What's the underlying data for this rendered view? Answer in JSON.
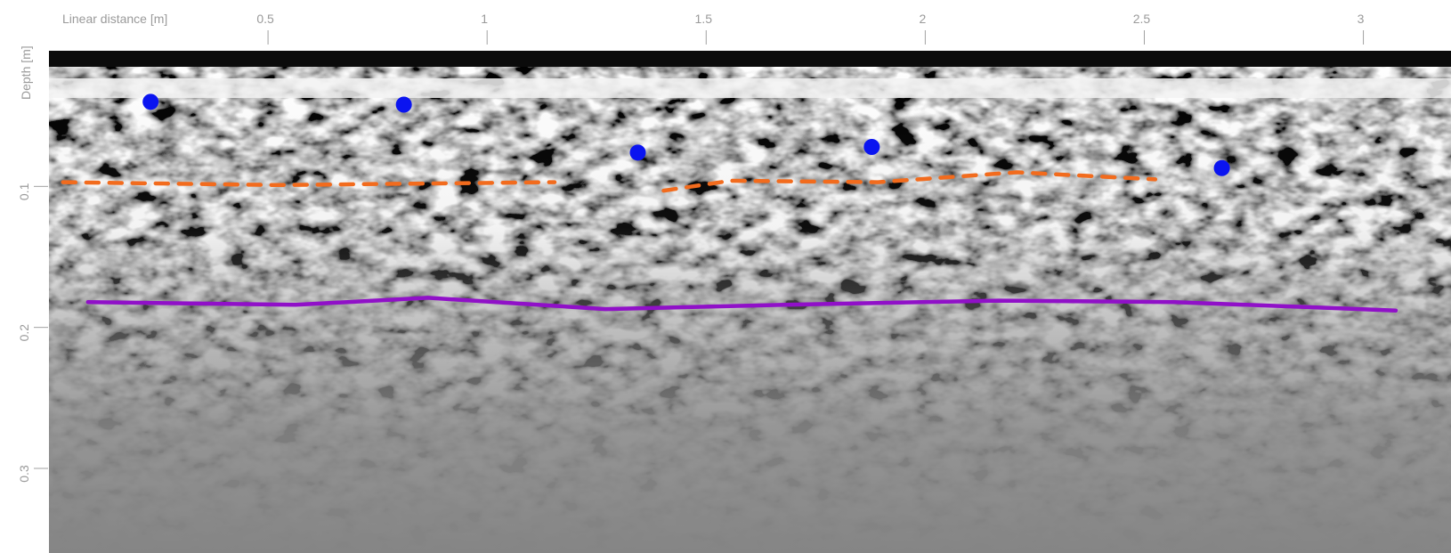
{
  "chart_data": {
    "type": "line",
    "xlabel": "Linear distance [m]",
    "ylabel": "Depth [m]",
    "xlim": [
      0,
      3.2
    ],
    "xticks": [
      0.5,
      1,
      1.5,
      2,
      2.5,
      3
    ],
    "ylim": [
      0,
      0.36
    ],
    "yticks": [
      0.1,
      0.2,
      0.3
    ],
    "y_inverted": true,
    "series": [
      {
        "color": "#0a14f0",
        "mode": "markers",
        "x": [
          0.232,
          0.81,
          1.344,
          1.878,
          2.677
        ],
        "values": [
          0.04,
          0.042,
          0.076,
          0.072,
          0.087
        ]
      },
      {
        "color": "#f26b1d",
        "mode": "dashed",
        "x": [
          0.032,
          0.521,
          0.838,
          1.154,
          null,
          1.403,
          1.555,
          1.892,
          2.209,
          2.525
        ],
        "values": [
          0.097,
          0.099,
          0.098,
          0.097,
          null,
          0.103,
          0.096,
          0.097,
          0.09,
          0.095
        ]
      },
      {
        "color": "#9010c8",
        "mode": "solid",
        "x": [
          0.089,
          0.563,
          0.865,
          1.27,
          1.681,
          2.167,
          2.568,
          3.074
        ],
        "values": [
          0.182,
          0.184,
          0.179,
          0.187,
          0.184,
          0.181,
          0.182,
          0.188
        ]
      }
    ]
  }
}
